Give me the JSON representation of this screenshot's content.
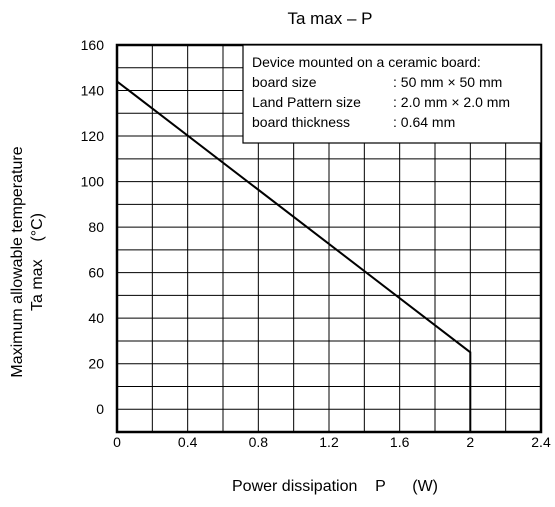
{
  "chart_data": {
    "type": "line",
    "title": "Ta max – P",
    "xlabel": "Power dissipation    P      (W)",
    "ylabel_line1": "Maximum allowable temperature",
    "ylabel_line2": "Ta max    (°C)",
    "xlim": [
      0,
      2.4
    ],
    "ylim": [
      -10,
      160
    ],
    "x_ticks": [
      0,
      0.4,
      0.8,
      1.2,
      1.6,
      2.0,
      2.4
    ],
    "x_tick_labels": [
      "0",
      "0.4",
      "0.8",
      "1.2",
      "1.6",
      "2",
      "2.4"
    ],
    "y_ticks": [
      0,
      20,
      40,
      60,
      80,
      100,
      120,
      140,
      160
    ],
    "y_tick_labels": [
      "0",
      "20",
      "40",
      "60",
      "80",
      "100",
      "120",
      "140",
      "160"
    ],
    "grid": true,
    "series": [
      {
        "x": [
          0,
          2.0,
          2.0
        ],
        "y": [
          144,
          25,
          -10
        ]
      }
    ],
    "annotation": {
      "heading": "Device mounted on a ceramic board:",
      "rows": [
        {
          "label": "board size",
          "value": ": 50 mm × 50 mm"
        },
        {
          "label": "Land Pattern size",
          "value": ": 2.0 mm × 2.0 mm"
        },
        {
          "label": "board thickness",
          "value": ": 0.64 mm"
        }
      ]
    }
  }
}
